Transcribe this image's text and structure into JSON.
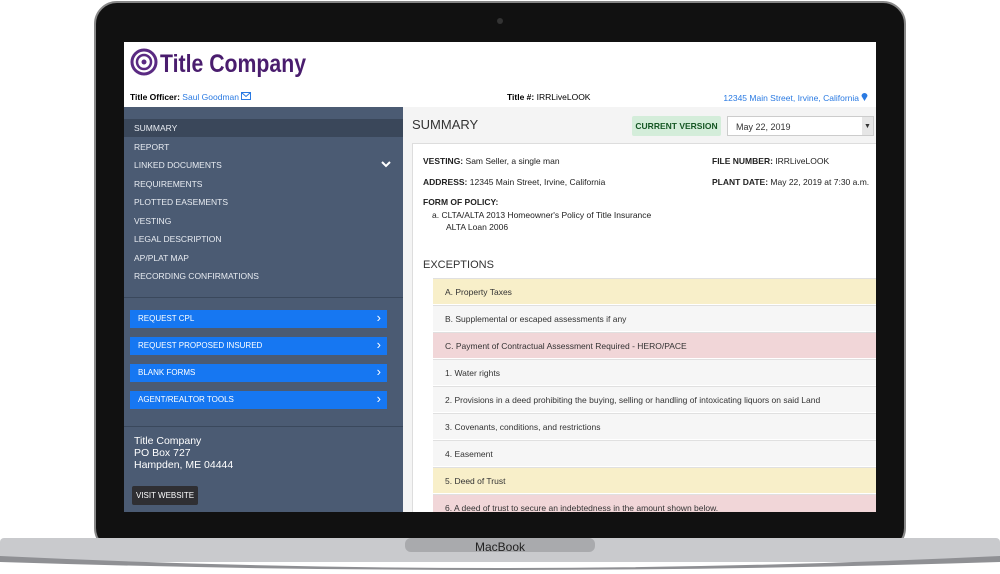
{
  "device": "MacBook",
  "header": {
    "company": "Title Company"
  },
  "info": {
    "officer_label": "Title Officer:",
    "officer": "Saul Goodman",
    "title_label": "Title #:",
    "title_number": "IRRLiveLOOK",
    "address": "12345 Main Street, Irvine, California"
  },
  "sidebar": {
    "menu": [
      "SUMMARY",
      "REPORT",
      "LINKED DOCUMENTS",
      "REQUIREMENTS",
      "PLOTTED EASEMENTS",
      "VESTING",
      "LEGAL DESCRIPTION",
      "AP/PLAT MAP",
      "RECORDING CONFIRMATIONS"
    ],
    "buttons": [
      "REQUEST CPL",
      "REQUEST PROPOSED INSURED",
      "BLANK FORMS",
      "AGENT/REALTOR TOOLS"
    ],
    "address": [
      "Title Company",
      "PO Box 727",
      "Hampden, ME 04444"
    ],
    "website_button": "VISIT WEBSITE"
  },
  "main": {
    "heading": "SUMMARY",
    "version_badge": "CURRENT VERSION",
    "date": "May 22, 2019"
  },
  "summary": {
    "vesting": {
      "label": "VESTING:",
      "value": "Sam Seller, a single man"
    },
    "file_number": {
      "label": "FILE NUMBER:",
      "value": "IRRLiveLOOK"
    },
    "address": {
      "label": "ADDRESS:",
      "value": "12345 Main Street, Irvine, California"
    },
    "plant_date": {
      "label": "PLANT DATE:",
      "value": "May 22, 2019 at 7:30 a.m."
    },
    "form_of_policy": {
      "label": "FORM OF POLICY:",
      "items": [
        "a. CLTA/ALTA 2013 Homeowner's Policy of Title Insurance",
        "ALTA Loan 2006"
      ]
    }
  },
  "exceptions": {
    "heading": "EXCEPTIONS",
    "rows": [
      {
        "text": "A. Property Taxes",
        "color": "#f8efc9"
      },
      {
        "text": "B. Supplemental or escaped assessments if any",
        "color": "#f6f6f6"
      },
      {
        "text": "C. Payment of Contractual Assessment Required - HERO/PACE",
        "color": "#f1d6d8"
      },
      {
        "text": "1. Water rights",
        "color": "#f6f6f6"
      },
      {
        "text": "2. Provisions in a deed prohibiting the buying, selling or handling of intoxicating liquors on said Land",
        "color": "#f6f6f6"
      },
      {
        "text": "3. Covenants, conditions, and restrictions",
        "color": "#f6f6f6"
      },
      {
        "text": "4. Easement",
        "color": "#f6f6f6"
      },
      {
        "text": "5. Deed of Trust",
        "color": "#f8efc9"
      },
      {
        "text": "6. A deed of trust to secure an indebtedness in the amount shown below.",
        "color": "#f1d6d8"
      }
    ]
  }
}
